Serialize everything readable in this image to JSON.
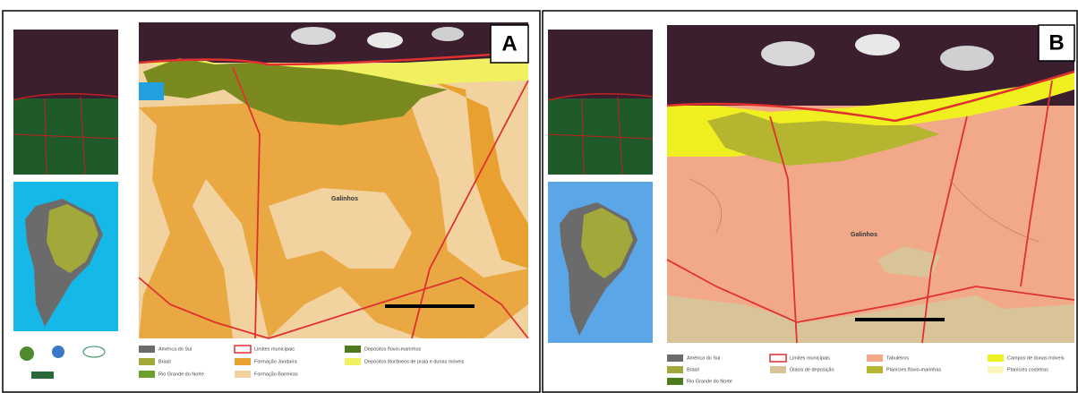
{
  "panels": [
    {
      "label": "A",
      "place": "Galinhos",
      "legend": [
        {
          "text": "América do Sul",
          "color": "#6b6b6b"
        },
        {
          "text": "Brasil",
          "color": "#a3a83a"
        },
        {
          "text": "Rio Grande do Norte",
          "color": "#6aa12e"
        },
        {
          "text": "Limites municipais",
          "color": "#e03030",
          "outline": true
        },
        {
          "text": "Formação Jandaíra",
          "color": "#e8a030"
        },
        {
          "text": "Formação Barreiras",
          "color": "#f2d3a0"
        },
        {
          "text": "Depósitos flúvio-marinhos",
          "color": "#4e7a1e"
        },
        {
          "text": "Depósitos litorâneos de praia e dunas móveis",
          "color": "#f0f060"
        }
      ]
    },
    {
      "label": "B",
      "place": "Galinhos",
      "legend": [
        {
          "text": "América do Sul",
          "color": "#6b6b6b"
        },
        {
          "text": "Brasil",
          "color": "#a3a83a"
        },
        {
          "text": "Rio Grande do Norte",
          "color": "#4e7a1e"
        },
        {
          "text": "Limites municipais",
          "color": "#e03030",
          "outline": true
        },
        {
          "text": "Glacis de deposição",
          "color": "#d9c49a"
        },
        {
          "text": "Tabuleiros",
          "color": "#f2a98a"
        },
        {
          "text": "Planícies flúvio-marinhas",
          "color": "#b5b530"
        },
        {
          "text": "Campos de dunas móveis",
          "color": "#f0f020"
        },
        {
          "text": "Planícies costeiras",
          "color": "#fbf5b8"
        }
      ]
    }
  ]
}
